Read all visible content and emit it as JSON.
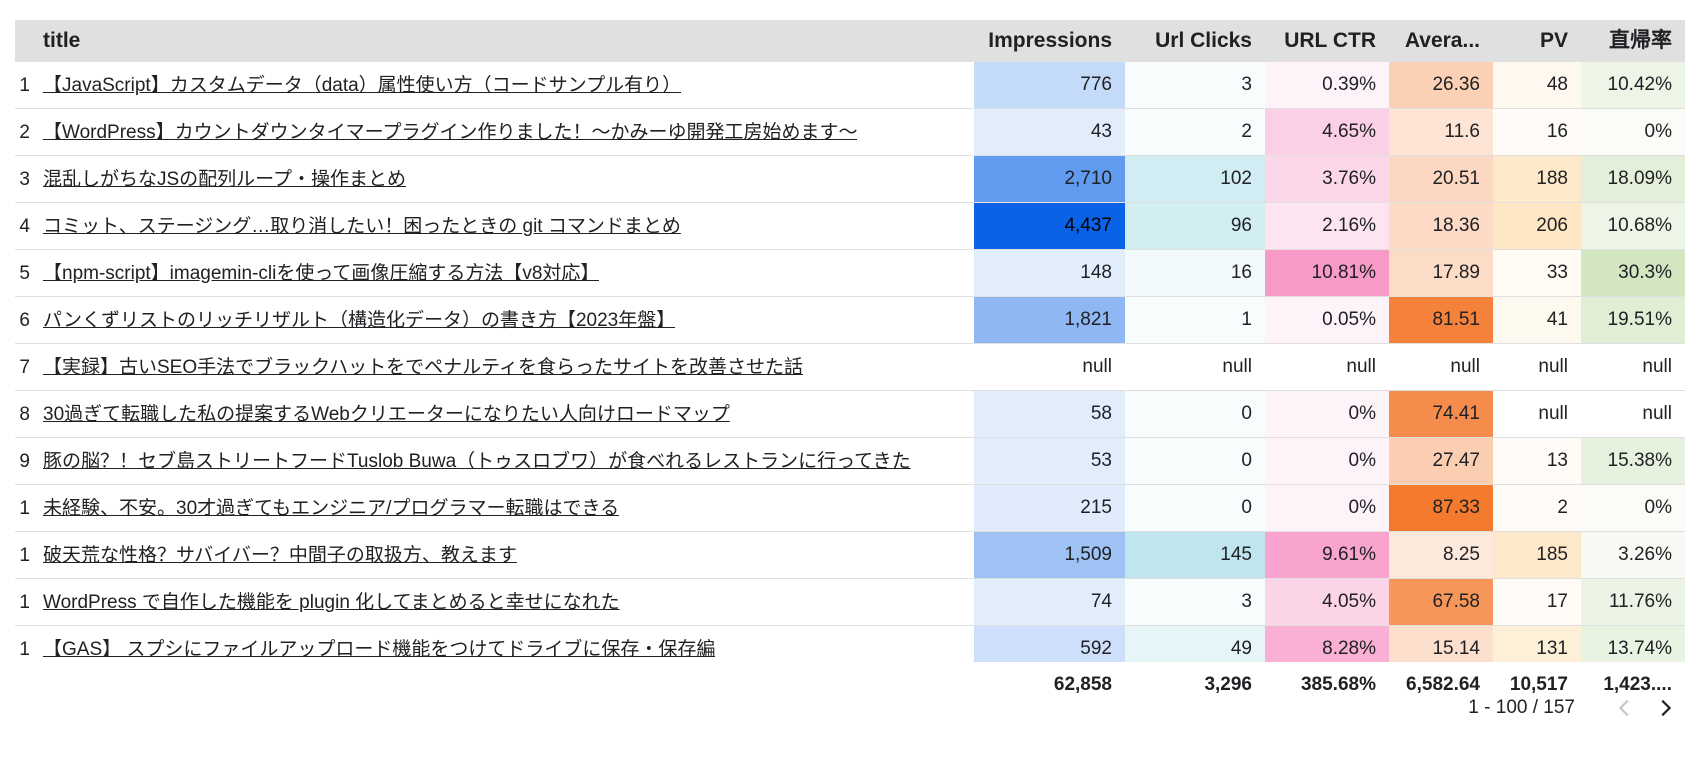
{
  "table": {
    "headers": {
      "title": "title",
      "impressions": "Impressions",
      "url_clicks": "Url Clicks",
      "url_ctr": "URL CTR",
      "average": "Avera...",
      "pv": "PV",
      "chokki": "直帰率"
    },
    "rows": [
      {
        "idx": "1",
        "title": "【JavaScript】カスタムデータ（data）属性使い方（コードサンプル有り）",
        "impressions": "776",
        "url_clicks": "3",
        "url_ctr": "0.39%",
        "average": "26.36",
        "pv": "48",
        "chokki": "10.42%"
      },
      {
        "idx": "2",
        "title": "【WordPress】カウントダウンタイマープラグイン作りました！〜かみーゆ開発工房始めます〜",
        "impressions": "43",
        "url_clicks": "2",
        "url_ctr": "4.65%",
        "average": "11.6",
        "pv": "16",
        "chokki": "0%"
      },
      {
        "idx": "3",
        "title": "混乱しがちなJSの配列ループ・操作まとめ",
        "impressions": "2,710",
        "url_clicks": "102",
        "url_ctr": "3.76%",
        "average": "20.51",
        "pv": "188",
        "chokki": "18.09%"
      },
      {
        "idx": "4",
        "title": "コミット、ステージング…取り消したい！困ったときの git コマンドまとめ",
        "impressions": "4,437",
        "url_clicks": "96",
        "url_ctr": "2.16%",
        "average": "18.36",
        "pv": "206",
        "chokki": "10.68%"
      },
      {
        "idx": "5",
        "title": "【npm-script】imagemin-cliを使って画像圧縮する方法【v8対応】",
        "impressions": "148",
        "url_clicks": "16",
        "url_ctr": "10.81%",
        "average": "17.89",
        "pv": "33",
        "chokki": "30.3%"
      },
      {
        "idx": "6",
        "title": "パンくずリストのリッチリザルト（構造化データ）の書き方【2023年盤】",
        "impressions": "1,821",
        "url_clicks": "1",
        "url_ctr": "0.05%",
        "average": "81.51",
        "pv": "41",
        "chokki": "19.51%"
      },
      {
        "idx": "7",
        "title": "【実録】古いSEO手法でブラックハットをでペナルティを食らったサイトを改善させた話",
        "impressions": "null",
        "url_clicks": "null",
        "url_ctr": "null",
        "average": "null",
        "pv": "null",
        "chokki": "null"
      },
      {
        "idx": "8",
        "title": "30過ぎて転職した私の提案するWebクリエーターになりたい人向けロードマップ",
        "impressions": "58",
        "url_clicks": "0",
        "url_ctr": "0%",
        "average": "74.41",
        "pv": "null",
        "chokki": "null"
      },
      {
        "idx": "9",
        "title": "豚の脳？！セブ島ストリートフードTuslob Buwa（トゥスロブワ）が食べれるレストランに行ってきた",
        "impressions": "53",
        "url_clicks": "0",
        "url_ctr": "0%",
        "average": "27.47",
        "pv": "13",
        "chokki": "15.38%"
      },
      {
        "idx": "1",
        "title": "未経験、不安。30才過ぎてもエンジニア/プログラマー転職はできる",
        "impressions": "215",
        "url_clicks": "0",
        "url_ctr": "0%",
        "average": "87.33",
        "pv": "2",
        "chokki": "0%"
      },
      {
        "idx": "1",
        "title": "破天荒な性格？サバイバー？中間子の取扱方、教えます",
        "impressions": "1,509",
        "url_clicks": "145",
        "url_ctr": "9.61%",
        "average": "8.25",
        "pv": "185",
        "chokki": "3.26%"
      },
      {
        "idx": "1",
        "title": "WordPress で自作した機能を plugin 化してまとめると幸せになれた",
        "impressions": "74",
        "url_clicks": "3",
        "url_ctr": "4.05%",
        "average": "67.58",
        "pv": "17",
        "chokki": "11.76%"
      },
      {
        "idx": "1",
        "title": "【GAS】 スプシにファイルアップロード機能をつけてドライブに保存・保存編",
        "impressions": "592",
        "url_clicks": "49",
        "url_ctr": "8.28%",
        "average": "15.14",
        "pv": "131",
        "chokki": "13.74%"
      }
    ],
    "totals": {
      "impressions": "62,858",
      "url_clicks": "3,296",
      "url_ctr": "385.68%",
      "average": "6,582.64",
      "pv": "10,517",
      "chokki": "1,423...."
    }
  },
  "pagination": {
    "range_text": "1 - 100 / 157",
    "prev_icon": "chevron-left-icon",
    "next_icon": "chevron-right-icon"
  },
  "colors": {
    "header_bg": "#e0e0e0",
    "impressions_heat": "#0a63e6",
    "url_clicks_heat": "#bfe6ee",
    "url_ctr_heat": "#f79ac8",
    "average_heat": "#f47a2e",
    "pv_heat": "#fde7c4",
    "chokki_heat": "#d2e6c2"
  }
}
